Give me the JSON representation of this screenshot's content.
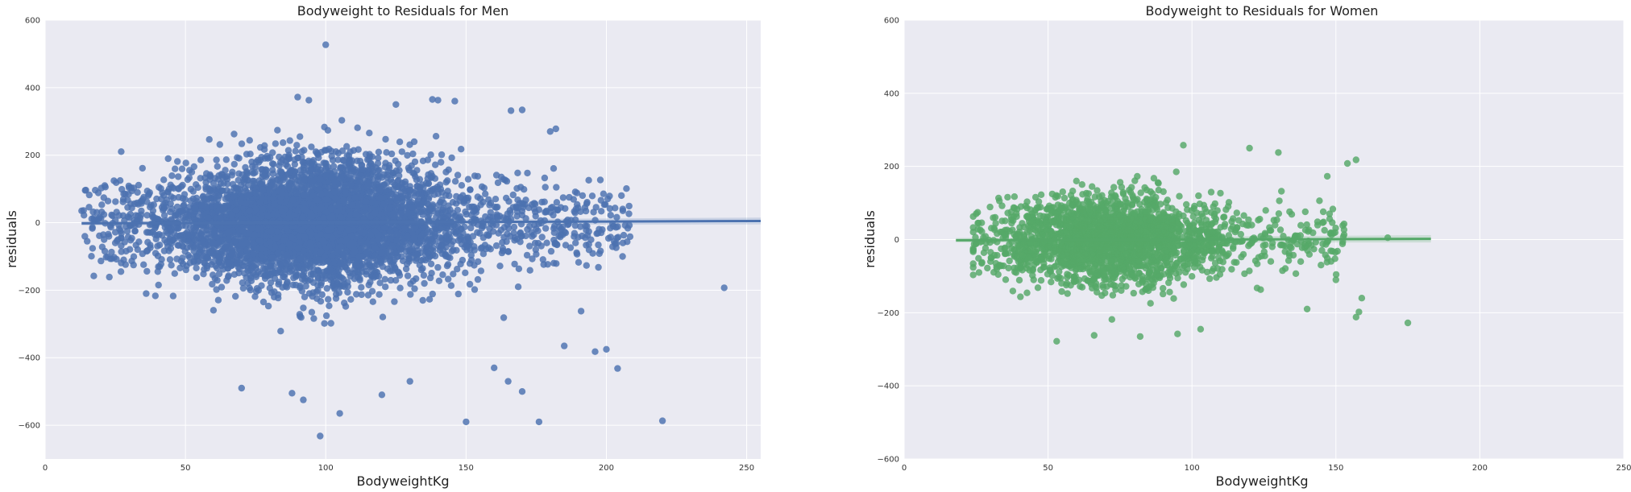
{
  "colors": {
    "background": "#eaeaf2",
    "grid": "#ffffff",
    "men": "#4c72b0",
    "women": "#55a868"
  },
  "chart_data": [
    {
      "type": "scatter",
      "title": "Bodyweight to Residuals for Men",
      "xlabel": "BodyweightKg",
      "ylabel": "residuals",
      "xlim": [
        0,
        255
      ],
      "ylim": [
        -700,
        600
      ],
      "xticks": [
        0,
        50,
        100,
        150,
        200,
        250
      ],
      "yticks": [
        -600,
        -400,
        -200,
        0,
        200,
        400,
        600
      ],
      "xtick_labels": [
        "0",
        "50",
        "100",
        "150",
        "200",
        "250"
      ],
      "ytick_labels": [
        "−600",
        "−400",
        "−200",
        "0",
        "200",
        "400",
        "600"
      ],
      "color": "men",
      "cloud": {
        "x_range": [
          13,
          243
        ],
        "y_spread": 95,
        "center_x": 95
      },
      "points": [
        {
          "x": 100,
          "y": 527
        },
        {
          "x": 98,
          "y": -632
        },
        {
          "x": 105,
          "y": -565
        },
        {
          "x": 150,
          "y": -590
        },
        {
          "x": 176,
          "y": -590
        },
        {
          "x": 220,
          "y": -587
        },
        {
          "x": 242,
          "y": -193
        },
        {
          "x": 204,
          "y": -432
        },
        {
          "x": 200,
          "y": -375
        },
        {
          "x": 196,
          "y": -382
        },
        {
          "x": 191,
          "y": -262
        },
        {
          "x": 189,
          "y": -60
        },
        {
          "x": 185,
          "y": -365
        },
        {
          "x": 182,
          "y": 278
        },
        {
          "x": 180,
          "y": 270
        },
        {
          "x": 170,
          "y": 334
        },
        {
          "x": 166,
          "y": 332
        },
        {
          "x": 146,
          "y": 360
        },
        {
          "x": 140,
          "y": 363
        },
        {
          "x": 138,
          "y": 365
        },
        {
          "x": 90,
          "y": 372
        },
        {
          "x": 94,
          "y": 363
        },
        {
          "x": 125,
          "y": 350
        },
        {
          "x": 70,
          "y": -490
        },
        {
          "x": 88,
          "y": -505
        },
        {
          "x": 92,
          "y": -525
        },
        {
          "x": 160,
          "y": -430
        },
        {
          "x": 165,
          "y": -470
        },
        {
          "x": 170,
          "y": -500
        },
        {
          "x": 130,
          "y": -470
        },
        {
          "x": 120,
          "y": -510
        },
        {
          "x": 25,
          "y": -60
        },
        {
          "x": 28,
          "y": -110
        },
        {
          "x": 36,
          "y": -210
        },
        {
          "x": 15,
          "y": -55
        },
        {
          "x": 30,
          "y": 15
        }
      ],
      "regression": {
        "x": [
          13,
          255
        ],
        "y": [
          -2,
          5
        ]
      }
    },
    {
      "type": "scatter",
      "title": "Bodyweight to Residuals for Women",
      "xlabel": "BodyweightKg",
      "ylabel": "residuals",
      "xlim": [
        0,
        250
      ],
      "ylim": [
        -600,
        600
      ],
      "xticks": [
        0,
        50,
        100,
        150,
        200,
        250
      ],
      "yticks": [
        -600,
        -400,
        -200,
        0,
        200,
        400,
        600
      ],
      "xtick_labels": [
        "0",
        "50",
        "100",
        "150",
        "200",
        "250"
      ],
      "ytick_labels": [
        "−600",
        "−400",
        "−200",
        "0",
        "200",
        "400",
        "600"
      ],
      "color": "women",
      "cloud": {
        "x_range": [
          24,
          176
        ],
        "y_spread": 65,
        "center_x": 72
      },
      "points": [
        {
          "x": 175,
          "y": -228
        },
        {
          "x": 157,
          "y": 218
        },
        {
          "x": 154,
          "y": 208
        },
        {
          "x": 147,
          "y": 173
        },
        {
          "x": 158,
          "y": -198
        },
        {
          "x": 157,
          "y": -212
        },
        {
          "x": 159,
          "y": -160
        },
        {
          "x": 97,
          "y": 258
        },
        {
          "x": 120,
          "y": 250
        },
        {
          "x": 130,
          "y": 238
        },
        {
          "x": 53,
          "y": -278
        },
        {
          "x": 66,
          "y": -262
        },
        {
          "x": 82,
          "y": -265
        },
        {
          "x": 95,
          "y": -258
        },
        {
          "x": 103,
          "y": -245
        },
        {
          "x": 26,
          "y": -90
        },
        {
          "x": 30,
          "y": -60
        },
        {
          "x": 140,
          "y": -190
        },
        {
          "x": 150,
          "y": -110
        },
        {
          "x": 168,
          "y": 5
        }
      ],
      "regression": {
        "x": [
          18,
          183
        ],
        "y": [
          -2,
          2
        ]
      }
    }
  ]
}
